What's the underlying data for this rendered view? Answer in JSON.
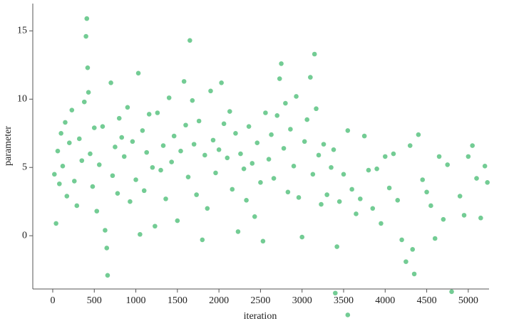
{
  "chart_data": {
    "type": "scatter",
    "x_label": "iteration",
    "y_label": "parameter",
    "color": "#00a33c",
    "x": [
      20,
      40,
      60,
      80,
      100,
      120,
      150,
      170,
      200,
      230,
      260,
      290,
      320,
      350,
      380,
      400,
      410,
      420,
      430,
      450,
      480,
      500,
      530,
      560,
      600,
      630,
      650,
      660,
      700,
      720,
      750,
      780,
      800,
      830,
      860,
      900,
      930,
      960,
      1000,
      1030,
      1050,
      1080,
      1100,
      1130,
      1160,
      1200,
      1230,
      1260,
      1300,
      1330,
      1360,
      1400,
      1430,
      1460,
      1500,
      1540,
      1580,
      1600,
      1630,
      1650,
      1680,
      1700,
      1730,
      1760,
      1800,
      1830,
      1860,
      1900,
      1930,
      1960,
      2000,
      2030,
      2060,
      2100,
      2130,
      2160,
      2200,
      2230,
      2260,
      2300,
      2330,
      2360,
      2400,
      2430,
      2460,
      2500,
      2530,
      2560,
      2600,
      2630,
      2660,
      2700,
      2730,
      2750,
      2780,
      2800,
      2830,
      2860,
      2900,
      2930,
      2960,
      3000,
      3030,
      3060,
      3100,
      3130,
      3150,
      3170,
      3200,
      3230,
      3260,
      3300,
      3350,
      3380,
      3420,
      3450,
      3500,
      3550,
      3600,
      3650,
      3700,
      3750,
      3800,
      3850,
      3900,
      3950,
      4000,
      4050,
      4100,
      4150,
      4200,
      4250,
      4300,
      4330,
      4350,
      4400,
      4450,
      4500,
      4550,
      4600,
      4650,
      4700,
      4750,
      4800,
      4900,
      4950,
      5000,
      5050,
      5100,
      5150,
      5200,
      5230,
      3400,
      3550
    ],
    "values": [
      4.5,
      0.9,
      6.2,
      3.8,
      7.5,
      5.1,
      8.3,
      2.9,
      6.8,
      9.2,
      4.0,
      2.2,
      7.1,
      5.5,
      9.8,
      14.6,
      15.9,
      12.3,
      10.5,
      6.0,
      3.6,
      7.9,
      1.8,
      5.2,
      8.0,
      0.4,
      -0.9,
      -2.9,
      11.2,
      4.4,
      6.5,
      3.1,
      8.6,
      7.2,
      5.8,
      9.4,
      2.5,
      6.9,
      4.1,
      11.9,
      0.1,
      7.7,
      3.3,
      6.1,
      8.9,
      5.0,
      0.7,
      9.0,
      4.8,
      6.6,
      2.7,
      10.1,
      5.4,
      7.3,
      1.1,
      6.2,
      11.3,
      8.1,
      4.3,
      14.3,
      9.9,
      6.7,
      3.0,
      8.4,
      -0.3,
      5.9,
      2.0,
      10.6,
      7.0,
      4.6,
      6.3,
      11.2,
      8.2,
      5.7,
      9.1,
      3.4,
      7.5,
      0.3,
      6.0,
      4.9,
      2.6,
      8.0,
      5.3,
      1.4,
      6.8,
      3.9,
      -0.4,
      9.0,
      5.6,
      7.4,
      4.2,
      8.8,
      11.5,
      12.6,
      6.4,
      9.7,
      3.2,
      7.8,
      5.1,
      10.2,
      2.8,
      -0.1,
      6.9,
      8.5,
      11.6,
      4.5,
      13.3,
      9.3,
      5.9,
      2.3,
      6.7,
      3.0,
      5.0,
      6.3,
      -0.8,
      2.5,
      4.5,
      7.7,
      3.4,
      1.6,
      2.7,
      7.3,
      4.8,
      2.0,
      4.9,
      0.9,
      5.8,
      3.5,
      6.0,
      2.6,
      -0.3,
      -1.9,
      6.6,
      -1.0,
      -2.8,
      7.4,
      4.1,
      3.2,
      2.2,
      -0.2,
      5.8,
      1.2,
      5.2,
      -4.1,
      2.9,
      1.5,
      5.8,
      6.6,
      4.2,
      1.3,
      5.1,
      3.9,
      -4.2,
      -5.8
    ],
    "xlim": [
      -240,
      5250
    ],
    "ylim": [
      -3.9,
      17
    ],
    "xticks": [
      0,
      500,
      1000,
      1500,
      2000,
      2500,
      3000,
      3500,
      4000,
      4500,
      5000
    ],
    "yticks": [
      0,
      5,
      10,
      15
    ]
  }
}
